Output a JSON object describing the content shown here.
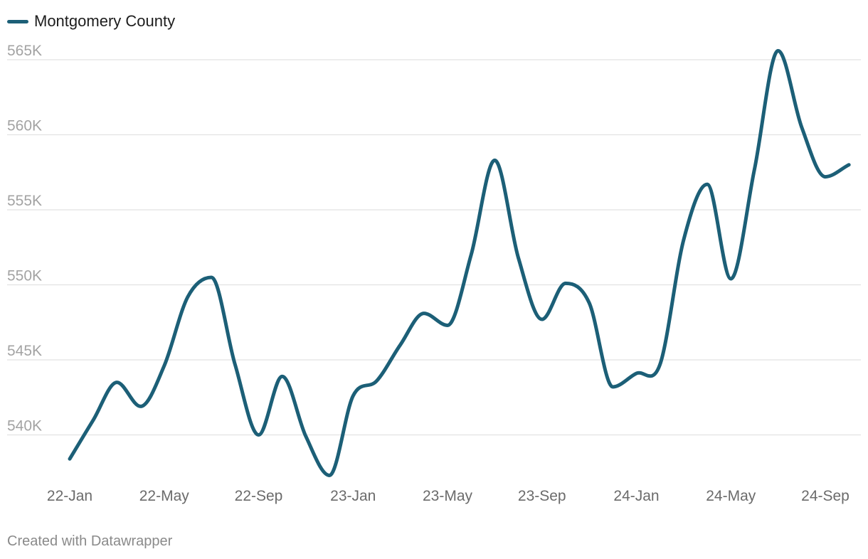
{
  "footer": "Created with Datawrapper",
  "colors": {
    "series": "#1c5f77",
    "grid": "#e2e2e2",
    "y_tick": "#a3a3a3",
    "x_tick": "#6b6b6b"
  },
  "chart_data": {
    "type": "line",
    "title": "",
    "xlabel": "",
    "ylabel": "",
    "legend_position": "top-left",
    "grid": true,
    "x_start": "2022-01",
    "x_tick_labels": [
      "22-Jan",
      "22-May",
      "22-Sep",
      "23-Jan",
      "23-May",
      "23-Sep",
      "24-Jan",
      "24-May",
      "24-Sep"
    ],
    "y_ticks": [
      540000,
      545000,
      550000,
      555000,
      560000,
      565000
    ],
    "y_tick_labels": [
      "540K",
      "545K",
      "550K",
      "555K",
      "560K",
      "565K"
    ],
    "ylim": [
      537000,
      566500
    ],
    "x": [
      "22-Jan",
      "22-Feb",
      "22-Mar",
      "22-Apr",
      "22-May",
      "22-Jun",
      "22-Jul",
      "22-Aug",
      "22-Sep",
      "22-Oct",
      "22-Nov",
      "22-Dec",
      "23-Jan",
      "23-Feb",
      "23-Mar",
      "23-Apr",
      "23-May",
      "23-Jun",
      "23-Jul",
      "23-Aug",
      "23-Sep",
      "23-Oct",
      "23-Nov",
      "23-Dec",
      "24-Jan",
      "24-Feb",
      "24-Mar",
      "24-Apr",
      "24-May",
      "24-Jun",
      "24-Jul",
      "24-Aug",
      "24-Sep",
      "24-Oct"
    ],
    "series": [
      {
        "name": "Montgomery County",
        "values": [
          538400,
          541000,
          543500,
          541900,
          544600,
          549200,
          550500,
          544700,
          540000,
          543900,
          539900,
          537300,
          542600,
          543600,
          546000,
          548100,
          547300,
          552000,
          558300,
          551800,
          547700,
          550100,
          548800,
          543200,
          544100,
          544700,
          553000,
          556700,
          550400,
          557700,
          565600,
          560500,
          557200,
          558000
        ]
      }
    ]
  }
}
